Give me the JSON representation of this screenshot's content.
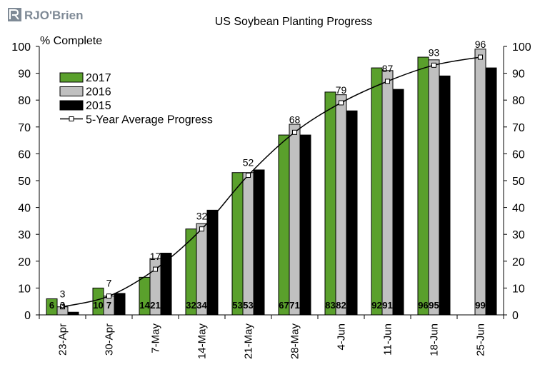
{
  "logo": {
    "text": "RJO'Brien",
    "color": "#7f8a96"
  },
  "chart_data": {
    "type": "bar",
    "title": "US Soybean Planting Progress",
    "ylabel": "% Complete",
    "xlabel": "",
    "ylim": [
      0,
      100
    ],
    "yticks": [
      0,
      10,
      20,
      30,
      40,
      50,
      60,
      70,
      80,
      90,
      100
    ],
    "secondary_y_axis": true,
    "grid": false,
    "legend_position": "top-left",
    "categories": [
      "23-Apr",
      "30-Apr",
      "7-May",
      "14-May",
      "21-May",
      "28-May",
      "4-Jun",
      "11-Jun",
      "18-Jun",
      "25-Jun"
    ],
    "series": [
      {
        "name": "2017",
        "type": "bar",
        "color": "#5aa02c",
        "values": [
          6,
          10,
          14,
          32,
          53,
          67,
          83,
          92,
          96,
          null
        ],
        "labels": [
          "6",
          "10",
          "14",
          "32",
          "53",
          "67",
          "83",
          "92",
          "96",
          ""
        ]
      },
      {
        "name": "2016",
        "type": "bar",
        "color": "#c0c0c0",
        "values": [
          3,
          7,
          21,
          34,
          53,
          71,
          82,
          91,
          95,
          99
        ],
        "labels": [
          "3",
          "7",
          "21",
          "34",
          "53",
          "71",
          "82",
          "91",
          "95",
          "99"
        ]
      },
      {
        "name": "2015",
        "type": "bar",
        "color": "#000000",
        "values": [
          1,
          8,
          23,
          39,
          54,
          67,
          76,
          84,
          89,
          92
        ]
      },
      {
        "name": "5-Year Average Progress",
        "type": "line",
        "color": "#000000",
        "values": [
          3,
          7,
          17,
          32,
          52,
          68,
          79,
          87,
          93,
          96
        ],
        "labels": [
          "3",
          "7",
          "17",
          "32",
          "52",
          "68",
          "79",
          "87",
          "93",
          "96"
        ]
      }
    ]
  }
}
